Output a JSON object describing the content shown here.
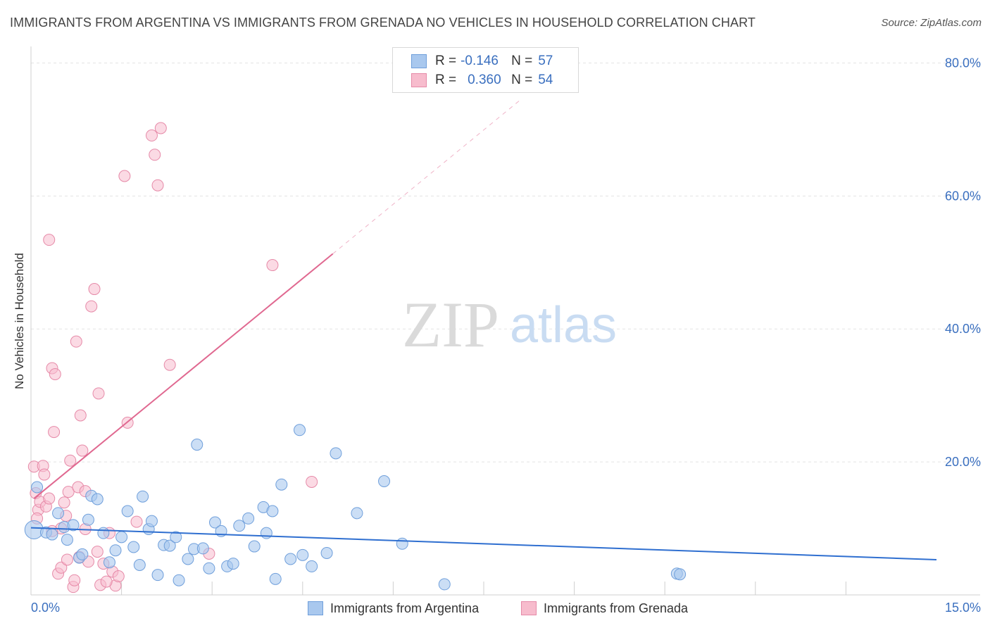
{
  "header": {
    "title": "IMMIGRANTS FROM ARGENTINA VS IMMIGRANTS FROM GRENADA NO VEHICLES IN HOUSEHOLD CORRELATION CHART",
    "source": "Source: ZipAtlas.com"
  },
  "watermark": {
    "zip": "ZIP",
    "atlas": "atlas"
  },
  "legend": {
    "rows": [
      {
        "r_label": "R =",
        "r_value": "-0.146",
        "n_label": "N =",
        "n_value": "57"
      },
      {
        "r_label": "R =",
        "r_value": "0.360",
        "n_label": "N =",
        "n_value": "54"
      }
    ]
  },
  "colors": {
    "argentina_fill": "#a9c8ee",
    "argentina_stroke": "#6f9fdb",
    "argentina_line": "#2f6fd0",
    "grenada_fill": "#f7bccd",
    "grenada_stroke": "#e68aa8",
    "grenada_line": "#e06890",
    "tick_label": "#3a6fbf",
    "grid": "#e3e3e3"
  },
  "chart_data": {
    "type": "scatter",
    "title": "IMMIGRANTS FROM ARGENTINA VS IMMIGRANTS FROM GRENADA NO VEHICLES IN HOUSEHOLD CORRELATION CHART",
    "xlabel": "",
    "ylabel": "No Vehicles in Household",
    "xlim": [
      0,
      15
    ],
    "ylim": [
      0,
      81
    ],
    "x_tick_labels": [
      "0.0%",
      "15.0%"
    ],
    "y_ticks": [
      20,
      40,
      60,
      80
    ],
    "y_tick_labels": [
      "20.0%",
      "40.0%",
      "60.0%",
      "80.0%"
    ],
    "grid": true,
    "legend_position": "top-center",
    "series": [
      {
        "name": "Immigrants from Argentina",
        "r": -0.146,
        "n": 57,
        "trend": {
          "x": [
            0,
            15
          ],
          "y": [
            10.1,
            5.3
          ]
        },
        "points": [
          [
            0.05,
            9.8
          ],
          [
            0.1,
            16.2
          ],
          [
            0.25,
            9.4
          ],
          [
            0.35,
            9.1
          ],
          [
            0.45,
            12.3
          ],
          [
            0.55,
            10.2
          ],
          [
            0.6,
            8.3
          ],
          [
            0.7,
            10.5
          ],
          [
            0.8,
            5.6
          ],
          [
            0.85,
            6.1
          ],
          [
            0.95,
            11.3
          ],
          [
            1.0,
            14.9
          ],
          [
            1.1,
            14.4
          ],
          [
            1.2,
            9.3
          ],
          [
            1.3,
            4.9
          ],
          [
            1.4,
            6.7
          ],
          [
            1.5,
            8.7
          ],
          [
            1.6,
            12.6
          ],
          [
            1.7,
            7.2
          ],
          [
            1.8,
            4.5
          ],
          [
            1.85,
            14.8
          ],
          [
            1.95,
            9.9
          ],
          [
            2.0,
            11.1
          ],
          [
            2.1,
            3.0
          ],
          [
            2.2,
            7.5
          ],
          [
            2.3,
            7.4
          ],
          [
            2.4,
            8.7
          ],
          [
            2.45,
            2.2
          ],
          [
            2.6,
            5.4
          ],
          [
            2.7,
            6.9
          ],
          [
            2.75,
            22.6
          ],
          [
            2.85,
            7.0
          ],
          [
            2.95,
            4.0
          ],
          [
            3.05,
            10.9
          ],
          [
            3.15,
            9.6
          ],
          [
            3.25,
            4.3
          ],
          [
            3.35,
            4.7
          ],
          [
            3.45,
            10.4
          ],
          [
            3.6,
            11.5
          ],
          [
            3.7,
            7.3
          ],
          [
            3.85,
            13.2
          ],
          [
            3.9,
            9.3
          ],
          [
            4.0,
            12.6
          ],
          [
            4.05,
            2.4
          ],
          [
            4.15,
            16.6
          ],
          [
            4.3,
            5.4
          ],
          [
            4.45,
            24.8
          ],
          [
            4.5,
            6.0
          ],
          [
            4.65,
            4.3
          ],
          [
            4.9,
            6.3
          ],
          [
            5.05,
            21.3
          ],
          [
            5.4,
            12.3
          ],
          [
            5.85,
            17.1
          ],
          [
            6.15,
            7.7
          ],
          [
            6.85,
            1.6
          ],
          [
            10.7,
            3.2
          ],
          [
            10.75,
            3.1
          ]
        ]
      },
      {
        "name": "Immigrants from Grenada",
        "r": 0.36,
        "n": 54,
        "trend": {
          "x": [
            0.05,
            5.0
          ],
          "y": [
            14.5,
            51.3
          ]
        },
        "trend_extension": {
          "x": [
            5.0,
            8.1
          ],
          "y": [
            51.3,
            74.4
          ]
        },
        "points": [
          [
            0.05,
            19.3
          ],
          [
            0.08,
            15.3
          ],
          [
            0.12,
            12.8
          ],
          [
            0.15,
            14.0
          ],
          [
            0.2,
            19.4
          ],
          [
            0.22,
            18.1
          ],
          [
            0.25,
            13.3
          ],
          [
            0.3,
            14.5
          ],
          [
            0.3,
            53.4
          ],
          [
            0.35,
            34.1
          ],
          [
            0.38,
            24.5
          ],
          [
            0.4,
            33.2
          ],
          [
            0.45,
            3.2
          ],
          [
            0.5,
            10.0
          ],
          [
            0.5,
            4.1
          ],
          [
            0.55,
            13.9
          ],
          [
            0.58,
            11.9
          ],
          [
            0.6,
            5.3
          ],
          [
            0.62,
            15.5
          ],
          [
            0.65,
            20.2
          ],
          [
            0.7,
            1.2
          ],
          [
            0.72,
            2.2
          ],
          [
            0.75,
            38.1
          ],
          [
            0.78,
            16.2
          ],
          [
            0.8,
            5.7
          ],
          [
            0.82,
            27.0
          ],
          [
            0.85,
            21.7
          ],
          [
            0.9,
            15.6
          ],
          [
            0.95,
            5.0
          ],
          [
            1.0,
            43.4
          ],
          [
            1.05,
            46.0
          ],
          [
            1.1,
            6.5
          ],
          [
            1.12,
            30.3
          ],
          [
            1.15,
            1.5
          ],
          [
            1.2,
            4.7
          ],
          [
            1.3,
            9.3
          ],
          [
            1.35,
            3.5
          ],
          [
            1.4,
            1.4
          ],
          [
            1.45,
            2.8
          ],
          [
            1.55,
            63.0
          ],
          [
            1.6,
            25.9
          ],
          [
            1.75,
            11.0
          ],
          [
            2.0,
            69.1
          ],
          [
            2.05,
            66.2
          ],
          [
            2.1,
            61.6
          ],
          [
            2.15,
            70.2
          ],
          [
            2.3,
            34.6
          ],
          [
            2.95,
            6.2
          ],
          [
            4.0,
            49.6
          ],
          [
            4.65,
            17.0
          ],
          [
            0.1,
            11.5
          ],
          [
            0.35,
            9.6
          ],
          [
            0.9,
            9.9
          ],
          [
            1.25,
            2.0
          ]
        ]
      }
    ]
  },
  "bottom_legend": {
    "argentina_label": "Immigrants from Argentina",
    "grenada_label": "Immigrants from Grenada"
  }
}
